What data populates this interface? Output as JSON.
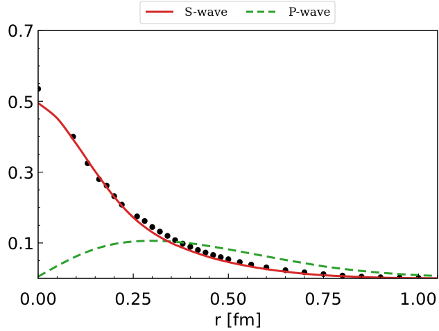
{
  "chart_data": {
    "type": "line",
    "xlabel": "r [fm]",
    "ylabel": "",
    "xlim": [
      0.0,
      1.05
    ],
    "ylim": [
      0.0,
      0.7
    ],
    "x_ticks": [
      0.0,
      0.25,
      0.5,
      0.75,
      1.0
    ],
    "x_tick_labels": [
      "0.00",
      "0.25",
      "0.50",
      "0.75",
      "1.00"
    ],
    "y_ticks": [
      0.1,
      0.3,
      0.5,
      0.7
    ],
    "y_tick_labels": [
      "0.1",
      "0.3",
      "0.5",
      "0.7"
    ],
    "grid": false,
    "legend_position": "top-center, above plot",
    "series": [
      {
        "name": "S-wave",
        "style": "solid",
        "color": "#d62728",
        "x": [
          0.0,
          0.05,
          0.1,
          0.15,
          0.2,
          0.25,
          0.3,
          0.35,
          0.4,
          0.45,
          0.5,
          0.55,
          0.6,
          0.65,
          0.7,
          0.75,
          0.8,
          0.85,
          0.9,
          0.95,
          1.0,
          1.05
        ],
        "y": [
          0.495,
          0.452,
          0.38,
          0.302,
          0.23,
          0.172,
          0.13,
          0.1,
          0.078,
          0.06,
          0.046,
          0.035,
          0.026,
          0.019,
          0.013,
          0.009,
          0.006,
          0.004,
          0.002,
          0.001,
          0.0005,
          0.0002
        ]
      },
      {
        "name": "P-wave",
        "style": "dashed",
        "color": "#2ca02c",
        "x": [
          0.0,
          0.05,
          0.1,
          0.15,
          0.2,
          0.25,
          0.3,
          0.35,
          0.4,
          0.45,
          0.5,
          0.55,
          0.6,
          0.65,
          0.7,
          0.75,
          0.8,
          0.85,
          0.9,
          0.95,
          1.0,
          1.05
        ],
        "y": [
          0.005,
          0.035,
          0.062,
          0.083,
          0.097,
          0.104,
          0.106,
          0.104,
          0.099,
          0.091,
          0.082,
          0.072,
          0.062,
          0.052,
          0.043,
          0.034,
          0.027,
          0.021,
          0.016,
          0.012,
          0.009,
          0.007
        ]
      },
      {
        "name": "",
        "style": "markers",
        "color": "#000000",
        "x": [
          0.0,
          0.092,
          0.13,
          0.16,
          0.18,
          0.2,
          0.22,
          0.26,
          0.28,
          0.3,
          0.32,
          0.34,
          0.36,
          0.38,
          0.4,
          0.42,
          0.44,
          0.46,
          0.48,
          0.5,
          0.53,
          0.56,
          0.6,
          0.65,
          0.7,
          0.75,
          0.8,
          0.85,
          0.9,
          0.95,
          1.0
        ],
        "y": [
          0.535,
          0.4,
          0.325,
          0.28,
          0.262,
          0.232,
          0.208,
          0.175,
          0.162,
          0.145,
          0.132,
          0.12,
          0.108,
          0.098,
          0.089,
          0.08,
          0.073,
          0.066,
          0.06,
          0.054,
          0.046,
          0.039,
          0.031,
          0.023,
          0.017,
          0.012,
          0.008,
          0.005,
          0.003,
          0.002,
          0.001
        ]
      }
    ]
  },
  "colors": {
    "s_wave": "#d62728",
    "p_wave": "#2ca02c",
    "data_points": "#000000"
  }
}
